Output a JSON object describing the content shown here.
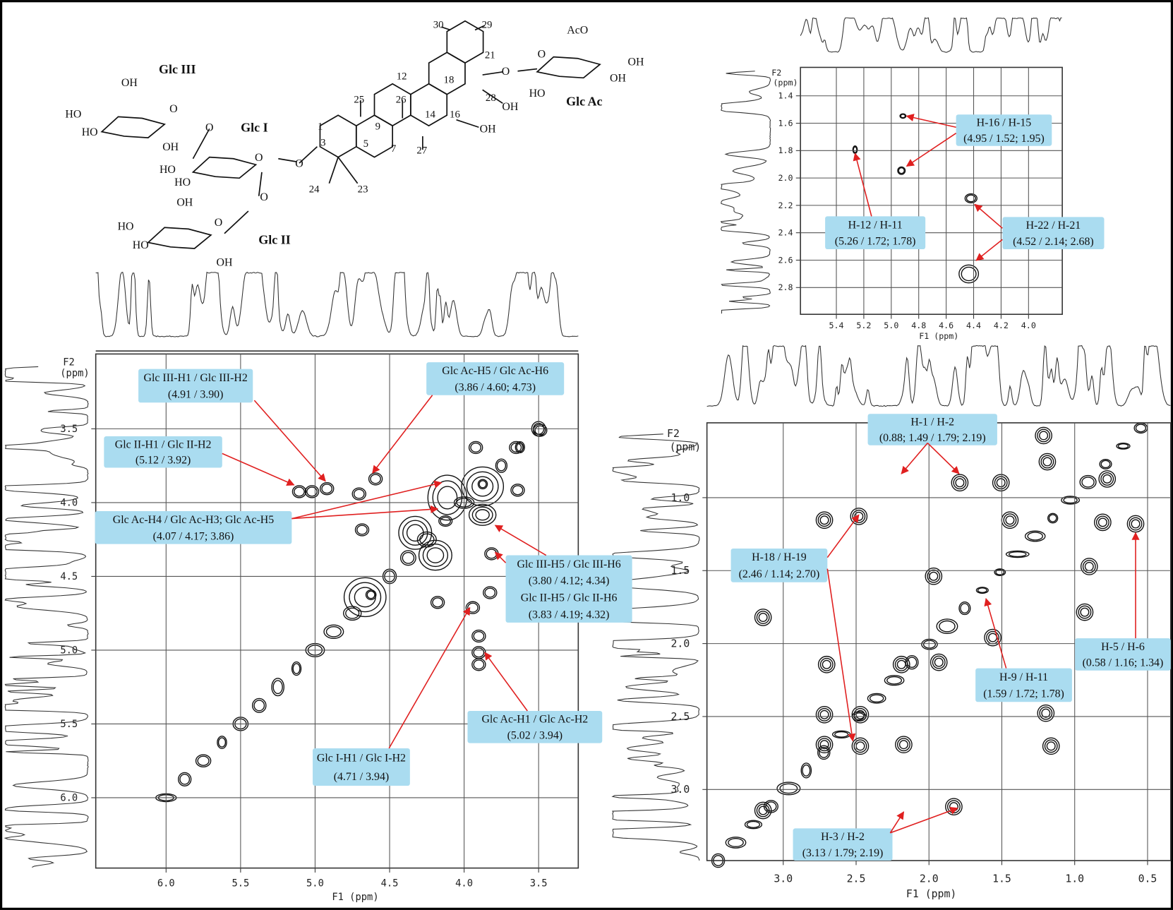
{
  "structure": {
    "sugar_labels": [
      "Glc III",
      "Glc I",
      "Glc II",
      "Glc Ac"
    ],
    "atom_numbers": [
      "30",
      "29",
      "21",
      "12",
      "18",
      "25",
      "26",
      "14",
      "16",
      "28",
      "1",
      "9",
      "3",
      "5",
      "7",
      "27",
      "24",
      "23"
    ],
    "groups": [
      "AcO",
      "O",
      "OH",
      "OH",
      "HO",
      "O",
      "OH",
      "OH",
      "OH",
      "O",
      "HO",
      "HO",
      "OH",
      "O",
      "O",
      "HO",
      "HO",
      "O",
      "O",
      "OH",
      "O",
      "HO",
      "HO",
      "OH"
    ]
  },
  "panels": [
    {
      "f2_label": "F2",
      "unit_label": "(ppm)",
      "f1_label": "F1 (ppm)",
      "x_ticks": [
        "6.0",
        "5.5",
        "5.0",
        "4.5",
        "4.0",
        "3.5"
      ],
      "y_ticks": [
        "3.5",
        "4.0",
        "4.5",
        "5.0",
        "5.5",
        "6.0"
      ],
      "annotations": [
        {
          "lines": [
            "Glc III-H1 / Glc III-H2",
            "(4.91 / 3.90)"
          ]
        },
        {
          "lines": [
            "Glc II-H1 / Glc II-H2",
            "(5.12 / 3.92)"
          ]
        },
        {
          "lines": [
            "Glc Ac-H5 / Glc Ac-H6",
            "(3.86 / 4.60; 4.73)"
          ]
        },
        {
          "lines": [
            "Glc Ac-H4 / Glc Ac-H3; Glc Ac-H5",
            "(4.07 / 4.17; 3.86)"
          ]
        },
        {
          "lines": [
            "Glc III-H5 / Glc III-H6",
            "(3.80 / 4.12; 4.34)",
            "Glc II-H5 / Glc II-H6",
            "(3.83 / 4.19; 4.32)"
          ]
        },
        {
          "lines": [
            "Glc Ac-H1 / Glc Ac-H2",
            "(5.02 / 3.94)"
          ]
        },
        {
          "lines": [
            "Glc I-H1 / Glc I-H2",
            "(4.71 / 3.94)"
          ]
        }
      ]
    },
    {
      "f2_label": "F2",
      "unit_label": "(ppm)",
      "f1_label": "F1 (ppm)",
      "x_ticks": [
        "5.4",
        "5.2",
        "5.0",
        "4.8",
        "4.6",
        "4.4",
        "4.2",
        "4.0"
      ],
      "y_ticks": [
        "1.4",
        "1.6",
        "1.8",
        "2.0",
        "2.2",
        "2.4",
        "2.6",
        "2.8"
      ],
      "annotations": [
        {
          "lines": [
            "H-16 / H-15",
            "(4.95 / 1.52; 1.95)"
          ]
        },
        {
          "lines": [
            "H-12 / H-11",
            "(5.26 / 1.72; 1.78)"
          ]
        },
        {
          "lines": [
            "H-22 / H-21",
            "(4.52 / 2.14; 2.68)"
          ]
        }
      ]
    },
    {
      "f2_label": "F2",
      "unit_label": "(ppm)",
      "f1_label": "F1 (ppm)",
      "x_ticks": [
        "3.0",
        "2.5",
        "2.0",
        "1.5",
        "1.0",
        "0.5"
      ],
      "y_ticks": [
        "1.0",
        "1.5",
        "2.0",
        "2.5",
        "3.0"
      ],
      "annotations": [
        {
          "lines": [
            "H-1 / H-2",
            "(0.88; 1.49 / 1.79; 2.19)"
          ]
        },
        {
          "lines": [
            "H-18 / H-19",
            "(2.46 / 1.14; 2.70)"
          ]
        },
        {
          "lines": [
            "H-5 / H-6",
            "(0.58 / 1.16; 1.34)"
          ]
        },
        {
          "lines": [
            "H-9 / H-11",
            "(1.59 / 1.72; 1.78)"
          ]
        },
        {
          "lines": [
            "H-3 / H-2",
            "(3.13 / 1.79; 2.19)"
          ]
        }
      ]
    }
  ]
}
